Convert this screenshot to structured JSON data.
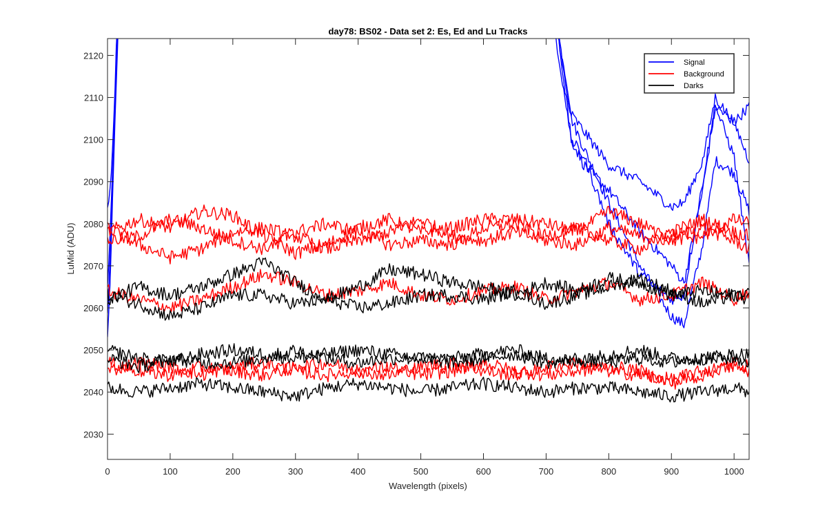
{
  "chart_data": {
    "type": "line",
    "title": "day78: BS02 - Data set 2: Es, Ed and Lu Tracks",
    "xlabel": "Wavelength (pixels)",
    "ylabel": "LuMid (ADU)",
    "xlim": [
      0,
      1024
    ],
    "ylim": [
      2024,
      2124
    ],
    "x_ticks": [
      0,
      100,
      200,
      300,
      400,
      500,
      600,
      700,
      800,
      900,
      1000
    ],
    "y_ticks": [
      2030,
      2040,
      2050,
      2060,
      2070,
      2080,
      2090,
      2100,
      2110,
      2120
    ],
    "grid": false,
    "legend_position": "top-right",
    "legend": [
      {
        "name": "Signal",
        "color": "#0000ff"
      },
      {
        "name": "Background",
        "color": "#ff0000"
      },
      {
        "name": "Darks",
        "color": "#000000"
      }
    ],
    "groups": [
      {
        "name": "Signal",
        "color": "#0000ff",
        "series": [
          {
            "x": [
              0,
              5,
              10,
              15,
              20,
              700,
              720,
              740,
              760,
              800,
              850,
              900,
              920,
              950,
              970,
              1000,
              1024
            ],
            "y": [
              2065,
              2080,
              2100,
              2125,
              2140,
              2140,
              2125,
              2105,
              2098,
              2085,
              2070,
              2058,
              2056,
              2075,
              2095,
              2092,
              2083
            ]
          },
          {
            "x": [
              0,
              5,
              10,
              15,
              20,
              700,
              720,
              740,
              760,
              800,
              850,
              900,
              920,
              950,
              970,
              1000,
              1024
            ],
            "y": [
              2058,
              2075,
              2098,
              2120,
              2140,
              2140,
              2120,
              2100,
              2094,
              2088,
              2078,
              2070,
              2066,
              2088,
              2108,
              2104,
              2108
            ]
          },
          {
            "x": [
              0,
              5,
              10,
              15,
              20,
              700,
              720,
              740,
              760,
              800,
              850,
              900,
              920,
              950,
              970,
              1000,
              1024
            ],
            "y": [
              2052,
              2070,
              2095,
              2118,
              2140,
              2140,
              2124,
              2106,
              2102,
              2094,
              2090,
              2084,
              2085,
              2095,
              2110,
              2104,
              2095
            ]
          },
          {
            "x": [
              0,
              5,
              10,
              15,
              20,
              700,
              720,
              740,
              760,
              800,
              850,
              900,
              920,
              950,
              970,
              1000,
              1024
            ],
            "y": [
              2085,
              2088,
              2105,
              2125,
              2140,
              2140,
              2124,
              2100,
              2096,
              2080,
              2068,
              2062,
              2063,
              2090,
              2108,
              2096,
              2070
            ]
          }
        ]
      },
      {
        "name": "Background",
        "color": "#ff0000",
        "series": [
          {
            "x": [
              0,
              50,
              100,
              150,
              200,
              250,
              300,
              350,
              400,
              450,
              500,
              550,
              600,
              650,
              700,
              750,
              800,
              850,
              900,
              950,
              1000,
              1024
            ],
            "y": [
              2078,
              2081,
              2079,
              2083,
              2082,
              2077,
              2073,
              2075,
              2079,
              2081,
              2078,
              2079,
              2081,
              2081,
              2080,
              2078,
              2083,
              2080,
              2076,
              2077,
              2081,
              2080
            ]
          },
          {
            "x": [
              0,
              50,
              100,
              150,
              200,
              250,
              300,
              350,
              400,
              450,
              500,
              550,
              600,
              650,
              700,
              750,
              800,
              850,
              900,
              950,
              1000,
              1024
            ],
            "y": [
              2079,
              2075,
              2072,
              2074,
              2078,
              2079,
              2077,
              2074,
              2076,
              2078,
              2081,
              2077,
              2076,
              2078,
              2076,
              2075,
              2079,
              2077,
              2078,
              2081,
              2078,
              2077
            ]
          },
          {
            "x": [
              0,
              50,
              100,
              150,
              200,
              250,
              300,
              350,
              400,
              450,
              500,
              550,
              600,
              650,
              700,
              750,
              800,
              850,
              900,
              950,
              1000,
              1024
            ],
            "y": [
              2076,
              2077,
              2081,
              2079,
              2076,
              2074,
              2078,
              2080,
              2078,
              2075,
              2076,
              2075,
              2079,
              2080,
              2077,
              2079,
              2076,
              2074,
              2077,
              2079,
              2076,
              2074
            ]
          },
          {
            "x": [
              0,
              50,
              100,
              150,
              200,
              250,
              300,
              350,
              400,
              450,
              500,
              550,
              600,
              650,
              700,
              750,
              800,
              850,
              900,
              950,
              1000,
              1024
            ],
            "y": [
              2064,
              2062,
              2060,
              2062,
              2065,
              2068,
              2066,
              2063,
              2064,
              2066,
              2063,
              2062,
              2064,
              2065,
              2062,
              2064,
              2066,
              2062,
              2063,
              2066,
              2062,
              2064
            ]
          },
          {
            "x": [
              0,
              50,
              100,
              150,
              200,
              250,
              300,
              350,
              400,
              450,
              500,
              550,
              600,
              650,
              700,
              750,
              800,
              850,
              900,
              950,
              1000,
              1024
            ],
            "y": [
              2047,
              2045,
              2044,
              2046,
              2045,
              2044,
              2046,
              2047,
              2045,
              2044,
              2046,
              2047,
              2045,
              2044,
              2046,
              2047,
              2045,
              2044,
              2043,
              2045,
              2046,
              2045
            ]
          },
          {
            "x": [
              0,
              50,
              100,
              150,
              200,
              250,
              300,
              350,
              400,
              450,
              500,
              550,
              600,
              650,
              700,
              750,
              800,
              850,
              900,
              950,
              1000,
              1024
            ],
            "y": [
              2045,
              2047,
              2046,
              2044,
              2046,
              2047,
              2045,
              2044,
              2045,
              2046,
              2044,
              2045,
              2047,
              2045,
              2044,
              2045,
              2046,
              2045,
              2042,
              2044,
              2047,
              2046
            ]
          }
        ]
      },
      {
        "name": "Darks",
        "color": "#000000",
        "series": [
          {
            "x": [
              0,
              50,
              100,
              150,
              200,
              250,
              300,
              350,
              400,
              450,
              500,
              550,
              600,
              650,
              700,
              750,
              800,
              850,
              900,
              950,
              1000,
              1024
            ],
            "y": [
              2062,
              2065,
              2063,
              2065,
              2068,
              2071,
              2066,
              2062,
              2065,
              2069,
              2068,
              2066,
              2065,
              2063,
              2066,
              2064,
              2067,
              2066,
              2063,
              2064,
              2063,
              2064
            ]
          },
          {
            "x": [
              0,
              50,
              100,
              150,
              200,
              250,
              300,
              350,
              400,
              450,
              500,
              550,
              600,
              650,
              700,
              750,
              800,
              850,
              900,
              950,
              1000,
              1024
            ],
            "y": [
              2063,
              2061,
              2058,
              2060,
              2063,
              2063,
              2061,
              2062,
              2060,
              2061,
              2063,
              2063,
              2062,
              2064,
              2061,
              2063,
              2065,
              2067,
              2064,
              2061,
              2063,
              2062
            ]
          },
          {
            "x": [
              0,
              50,
              100,
              150,
              200,
              250,
              300,
              350,
              400,
              450,
              500,
              550,
              600,
              650,
              700,
              750,
              800,
              850,
              900,
              950,
              1000,
              1024
            ],
            "y": [
              2050,
              2048,
              2047,
              2049,
              2050,
              2049,
              2048,
              2049,
              2050,
              2049,
              2048,
              2048,
              2049,
              2050,
              2048,
              2047,
              2049,
              2050,
              2048,
              2048,
              2049,
              2049
            ]
          },
          {
            "x": [
              0,
              50,
              100,
              150,
              200,
              250,
              300,
              350,
              400,
              450,
              500,
              550,
              600,
              650,
              700,
              750,
              800,
              850,
              900,
              950,
              1000,
              1024
            ],
            "y": [
              2048,
              2046,
              2048,
              2047,
              2047,
              2048,
              2050,
              2048,
              2047,
              2048,
              2048,
              2047,
              2048,
              2049,
              2047,
              2048,
              2047,
              2048,
              2047,
              2048,
              2048,
              2047
            ]
          },
          {
            "x": [
              0,
              50,
              100,
              150,
              200,
              250,
              300,
              350,
              400,
              450,
              500,
              550,
              600,
              650,
              700,
              750,
              800,
              850,
              900,
              950,
              1000,
              1024
            ],
            "y": [
              2041,
              2040,
              2041,
              2042,
              2041,
              2040,
              2039,
              2041,
              2042,
              2041,
              2040,
              2041,
              2042,
              2041,
              2040,
              2041,
              2041,
              2040,
              2039,
              2040,
              2041,
              2040
            ]
          }
        ]
      }
    ]
  }
}
